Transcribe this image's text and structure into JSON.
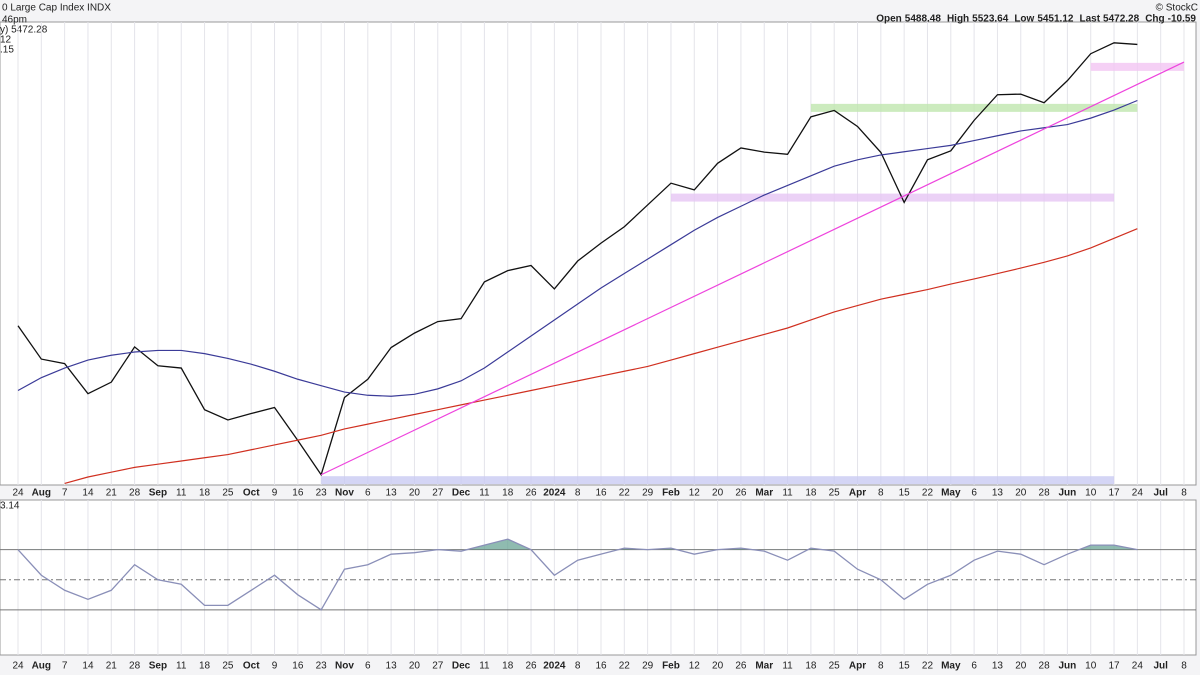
{
  "header": {
    "title": "0 Large Cap Index INDX",
    "source": "© StockC",
    "time": "46pm",
    "quote": [
      {
        "label": "Open",
        "value": 5488.48
      },
      {
        "label": "High",
        "value": 5523.64
      },
      {
        "label": "Low",
        "value": 5451.12
      },
      {
        "label": "Last",
        "value": 5472.28
      },
      {
        "label": "Chg",
        "value": -10.59
      }
    ],
    "legend": [
      {
        "text": "y) 5472.28",
        "color": "#000000"
      },
      {
        "text": "12",
        "color": "#3b3b98"
      },
      {
        "text": ".15",
        "color": "#d03020"
      }
    ]
  },
  "chart_data": [
    {
      "type": "line",
      "categories": [
        "24",
        "Aug",
        "7",
        "14",
        "21",
        "28",
        "Sep",
        "11",
        "18",
        "25",
        "Oct",
        "9",
        "16",
        "23",
        "Nov",
        "6",
        "13",
        "20",
        "27",
        "Dec",
        "11",
        "18",
        "26",
        "2024",
        "8",
        "16",
        "22",
        "29",
        "Feb",
        "12",
        "20",
        "26",
        "Mar",
        "11",
        "18",
        "25",
        "Apr",
        "8",
        "15",
        "22",
        "May",
        "6",
        "13",
        "20",
        "28",
        "Jun",
        "10",
        "17",
        "24",
        "Jul",
        "8"
      ],
      "ylim": [
        4085,
        5530
      ],
      "grid": true,
      "series": [
        {
          "color": "#111111",
          "values": [
            4582,
            4478,
            4464,
            4370,
            4406,
            4516,
            4457,
            4450,
            4320,
            4288,
            4308,
            4327,
            4224,
            4117,
            4358,
            4415,
            4514,
            4559,
            4595,
            4604,
            4719,
            4754,
            4770,
            4697,
            4784,
            4840,
            4891,
            4959,
            5027,
            5006,
            5089,
            5137,
            5124,
            5117,
            5234,
            5254,
            5204,
            5123,
            4967,
            5100,
            5128,
            5223,
            5303,
            5305,
            5278,
            5347,
            5431,
            5465,
            5460,
            null,
            null
          ]
        },
        {
          "color": "#3b3b98",
          "values": [
            4380,
            4420,
            4450,
            4475,
            4490,
            4500,
            4505,
            4505,
            4495,
            4480,
            4462,
            4440,
            4415,
            4395,
            4375,
            4365,
            4362,
            4368,
            4385,
            4410,
            4450,
            4500,
            4550,
            4600,
            4650,
            4700,
            4745,
            4790,
            4835,
            4880,
            4920,
            4955,
            4990,
            5020,
            5050,
            5080,
            5100,
            5115,
            5125,
            5135,
            5145,
            5160,
            5175,
            5190,
            5200,
            5210,
            5230,
            5255,
            5285,
            null,
            null
          ]
        },
        {
          "color": "#d03020",
          "values": [
            null,
            null,
            4090,
            4110,
            4125,
            4140,
            4150,
            4160,
            4170,
            4180,
            4195,
            4210,
            4225,
            4240,
            4260,
            4275,
            4290,
            4305,
            4320,
            4335,
            4350,
            4365,
            4380,
            4395,
            4410,
            4425,
            4440,
            4455,
            4475,
            4495,
            4515,
            4535,
            4555,
            4575,
            4600,
            4625,
            4645,
            4665,
            4680,
            4695,
            4712,
            4728,
            4745,
            4762,
            4780,
            4800,
            4825,
            4855,
            4885,
            null,
            null
          ]
        }
      ],
      "trendline": {
        "x": [
          13,
          50
        ],
        "values": [
          4117,
          5405
        ],
        "color": "#ee44dd"
      },
      "zones": [
        {
          "from": 34,
          "to": 48,
          "value": 5262,
          "color": "#bfe6ae"
        },
        {
          "from": 28,
          "to": 47,
          "value": 4982,
          "color": "#e6c6f4"
        },
        {
          "from": 13,
          "to": 47,
          "value": 4100,
          "color": "#c9cbf2"
        },
        {
          "from": 46,
          "to": 50,
          "value": 5390,
          "color": "#f3c4f2"
        }
      ]
    },
    {
      "type": "rsi",
      "label": "3.14",
      "categories": [
        "24",
        "Aug",
        "7",
        "14",
        "21",
        "28",
        "Sep",
        "11",
        "18",
        "25",
        "Oct",
        "9",
        "16",
        "23",
        "Nov",
        "6",
        "13",
        "20",
        "27",
        "Dec",
        "11",
        "18",
        "26",
        "2024",
        "8",
        "16",
        "22",
        "29",
        "Feb",
        "12",
        "20",
        "26",
        "Mar",
        "11",
        "18",
        "25",
        "Apr",
        "8",
        "15",
        "22",
        "May",
        "6",
        "13",
        "20",
        "28",
        "Jun",
        "10",
        "17",
        "24",
        "Jul",
        "8"
      ],
      "ylim": [
        0,
        103
      ],
      "levels": [
        30,
        50,
        70
      ],
      "color": "#8a8fb8",
      "fill": "#5f9e8f",
      "values": [
        70,
        53,
        43,
        37,
        43,
        60,
        50,
        47,
        33,
        33,
        43,
        53,
        40,
        30,
        57,
        60,
        67,
        68,
        70,
        69,
        73,
        77,
        70,
        53,
        63,
        67,
        71,
        70,
        71,
        67,
        70,
        71,
        69,
        63,
        71,
        69,
        57,
        50,
        37,
        47,
        53,
        63,
        69,
        67,
        60,
        67,
        73,
        73,
        70,
        null,
        null
      ]
    }
  ]
}
